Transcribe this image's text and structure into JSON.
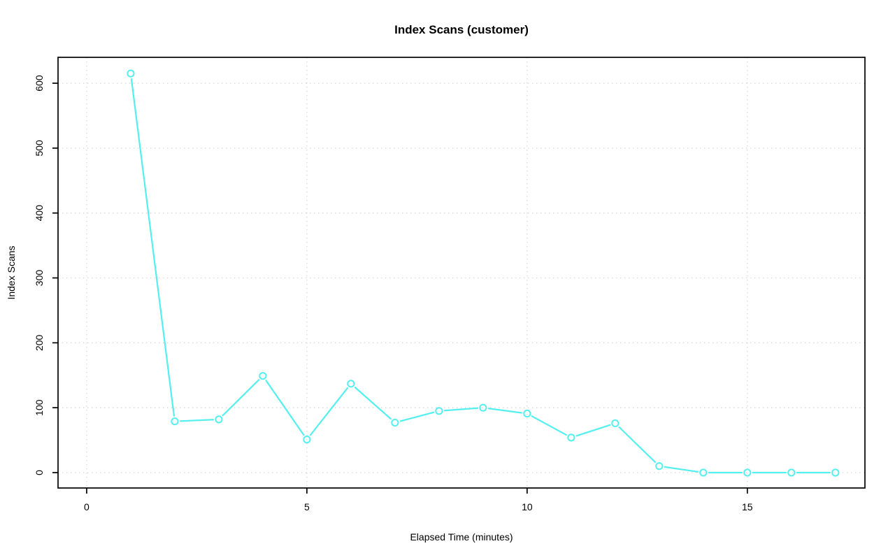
{
  "chart_data": {
    "type": "line",
    "title": "Index Scans (customer)",
    "xlabel": "Elapsed Time (minutes)",
    "ylabel": "Index Scans",
    "x": [
      1,
      2,
      3,
      4,
      5,
      6,
      7,
      8,
      9,
      10,
      11,
      12,
      13,
      14,
      15,
      16,
      17
    ],
    "values": [
      615,
      79,
      82,
      149,
      51,
      137,
      77,
      95,
      100,
      91,
      54,
      76,
      10,
      0,
      0,
      0,
      0
    ],
    "x_ticks": [
      0,
      5,
      10,
      15
    ],
    "y_ticks": [
      0,
      100,
      200,
      300,
      400,
      500,
      600
    ],
    "xlim": [
      -0.65,
      17.67
    ],
    "ylim": [
      -23.7,
      639.9
    ],
    "grid": "dotted",
    "legend_position": "none",
    "marker": "open-circle",
    "line_style": "solid-with-marker-gaps",
    "colors": {
      "line": "#55EFEF",
      "grid": "#D5D5D5",
      "axis": "#000000",
      "text": "#000000",
      "background": "#FFFFFF"
    }
  }
}
